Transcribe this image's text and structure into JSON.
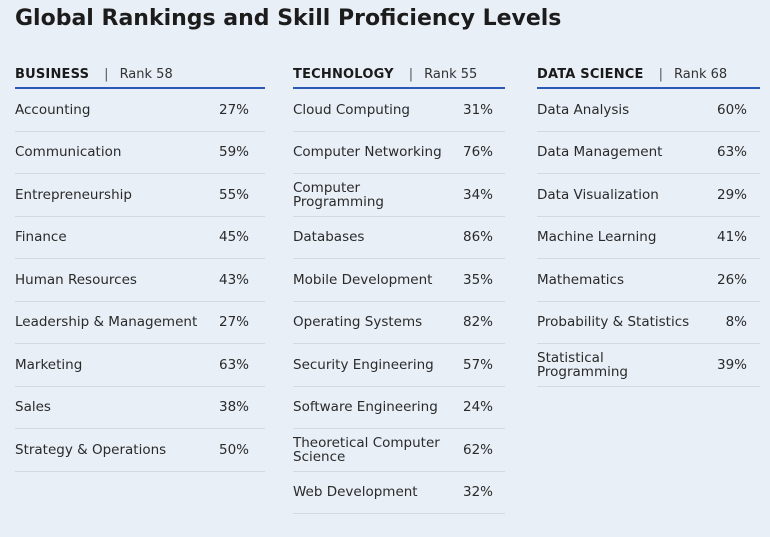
{
  "title": "Global Rankings and Skill Proficiency Levels",
  "chart_data": {
    "type": "table",
    "title": "Global Rankings and Skill Proficiency Levels",
    "unit": "%",
    "columns": [
      {
        "category": "BUSINESS",
        "rank_label": "Rank 58",
        "rank": 58,
        "rows": [
          {
            "skill": "Accounting",
            "value": 27,
            "label": "27%"
          },
          {
            "skill": "Communication",
            "value": 59,
            "label": "59%"
          },
          {
            "skill": "Entrepreneurship",
            "value": 55,
            "label": "55%"
          },
          {
            "skill": "Finance",
            "value": 45,
            "label": "45%"
          },
          {
            "skill": "Human Resources",
            "value": 43,
            "label": "43%"
          },
          {
            "skill": "Leadership & Management",
            "value": 27,
            "label": "27%"
          },
          {
            "skill": "Marketing",
            "value": 63,
            "label": "63%"
          },
          {
            "skill": "Sales",
            "value": 38,
            "label": "38%"
          },
          {
            "skill": "Strategy & Operations",
            "value": 50,
            "label": "50%"
          }
        ]
      },
      {
        "category": "TECHNOLOGY",
        "rank_label": "Rank 55",
        "rank": 55,
        "rows": [
          {
            "skill": "Cloud Computing",
            "value": 31,
            "label": "31%"
          },
          {
            "skill": "Computer Networking",
            "value": 76,
            "label": "76%"
          },
          {
            "skill": "Computer Programming",
            "value": 34,
            "label": "34%"
          },
          {
            "skill": "Databases",
            "value": 86,
            "label": "86%"
          },
          {
            "skill": "Mobile Development",
            "value": 35,
            "label": "35%"
          },
          {
            "skill": "Operating Systems",
            "value": 82,
            "label": "82%"
          },
          {
            "skill": "Security Engineering",
            "value": 57,
            "label": "57%"
          },
          {
            "skill": "Software Engineering",
            "value": 24,
            "label": "24%"
          },
          {
            "skill": "Theoretical Computer Science",
            "value": 62,
            "label": "62%"
          },
          {
            "skill": "Web Development",
            "value": 32,
            "label": "32%"
          }
        ]
      },
      {
        "category": "DATA SCIENCE",
        "rank_label": "Rank 68",
        "rank": 68,
        "rows": [
          {
            "skill": "Data Analysis",
            "value": 60,
            "label": "60%"
          },
          {
            "skill": "Data Management",
            "value": 63,
            "label": "63%"
          },
          {
            "skill": "Data Visualization",
            "value": 29,
            "label": "29%"
          },
          {
            "skill": "Machine Learning",
            "value": 41,
            "label": "41%"
          },
          {
            "skill": "Mathematics",
            "value": 26,
            "label": "26%"
          },
          {
            "skill": "Probability & Statistics",
            "value": 8,
            "label": "8%"
          },
          {
            "skill": "Statistical Programming",
            "value": 39,
            "label": "39%"
          }
        ]
      }
    ]
  }
}
